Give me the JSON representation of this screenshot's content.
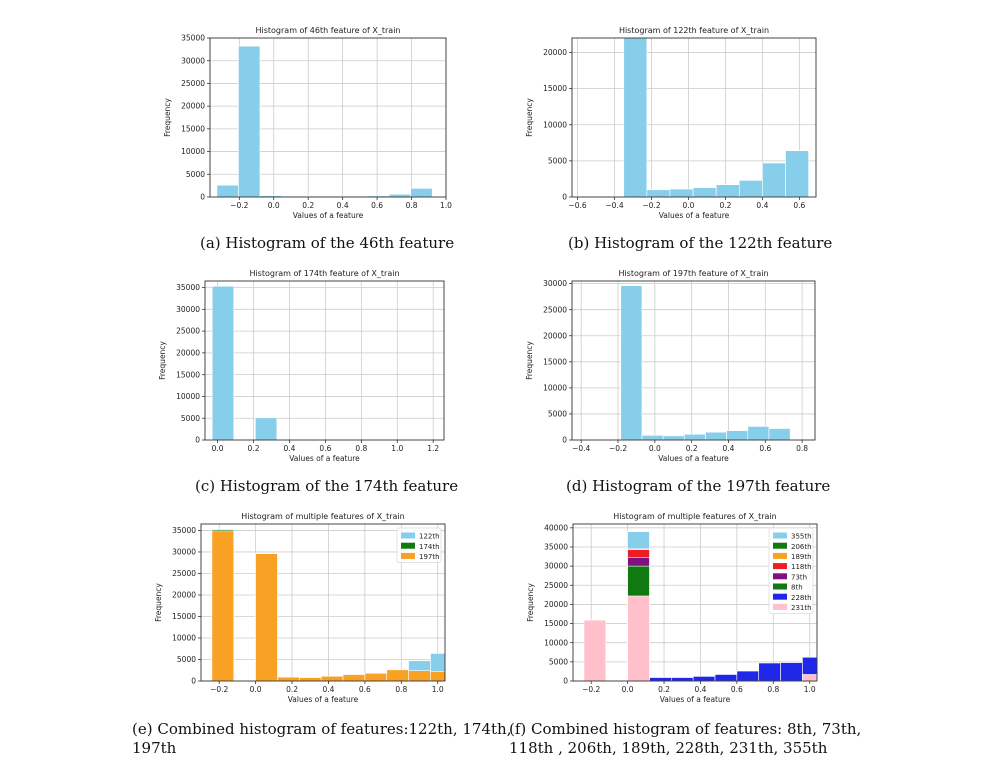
{
  "colors": {
    "skyblue": "#87ceeb",
    "green": "#107a10",
    "orange": "#f8a125",
    "red": "#ee1c25",
    "purple": "#7f1280",
    "blue": "#1f28e9",
    "pink": "#ffc0cb",
    "grid": "#cccccc",
    "axis": "#333333"
  },
  "captions": {
    "a": "(a) Histogram of the 46th feature",
    "b": "(b) Histogram of the 122th feature",
    "c": "(c) Histogram of the 174th feature",
    "d": "(d) Histogram of the 197th feature",
    "e_line1": "(e) Combined histogram of features:122th, 174th,",
    "e_line2": "197th",
    "f_line1": "(f) Combined histogram of features: 8th, 73th,",
    "f_line2": "118th , 206th, 189th, 228th, 231th, 355th"
  },
  "chart_data": [
    {
      "id": "a",
      "type": "bar",
      "title": "Histogram of 46th feature of X_train",
      "xlabel": "Values of a feature",
      "ylabel": "Frequency",
      "xlim": [
        -0.37,
        1.0
      ],
      "ylim": [
        0,
        35000
      ],
      "grid": true,
      "xticks": [
        -0.2,
        0.0,
        0.2,
        0.4,
        0.6,
        0.8,
        1.0
      ],
      "xticklabels": [
        "−0.2",
        "0.0",
        "0.2",
        "0.4",
        "0.6",
        "0.8",
        "1.0"
      ],
      "yticks": [
        0,
        5000,
        10000,
        15000,
        20000,
        25000,
        30000,
        35000
      ],
      "series": [
        {
          "color": "skyblue",
          "bins": [
            {
              "x0": -0.33,
              "x1": -0.205,
              "y": 2600
            },
            {
              "x0": -0.205,
              "x1": -0.08,
              "y": 33200
            },
            {
              "x0": -0.08,
              "x1": 0.045,
              "y": 300
            },
            {
              "x0": 0.045,
              "x1": 0.17,
              "y": 200
            },
            {
              "x0": 0.17,
              "x1": 0.295,
              "y": 200
            },
            {
              "x0": 0.295,
              "x1": 0.42,
              "y": 200
            },
            {
              "x0": 0.42,
              "x1": 0.545,
              "y": 200
            },
            {
              "x0": 0.545,
              "x1": 0.67,
              "y": 250
            },
            {
              "x0": 0.67,
              "x1": 0.795,
              "y": 600
            },
            {
              "x0": 0.795,
              "x1": 0.92,
              "y": 1900
            }
          ]
        }
      ]
    },
    {
      "id": "b",
      "type": "bar",
      "title": "Histogram of 122th feature of X_train",
      "xlabel": "Values of a feature",
      "ylabel": "Frequency",
      "xlim": [
        -0.63,
        0.69
      ],
      "ylim": [
        0,
        22000
      ],
      "grid": true,
      "xticks": [
        -0.6,
        -0.4,
        -0.2,
        0.0,
        0.2,
        0.4,
        0.6
      ],
      "xticklabels": [
        "−0.6",
        "−0.4",
        "−0.2",
        "0.0",
        "0.2",
        "0.4",
        "0.6"
      ],
      "yticks": [
        0,
        5000,
        10000,
        15000,
        20000
      ],
      "series": [
        {
          "color": "skyblue",
          "bins": [
            {
              "x0": -0.6,
              "x1": -0.475,
              "y": 100
            },
            {
              "x0": -0.475,
              "x1": -0.35,
              "y": 100
            },
            {
              "x0": -0.35,
              "x1": -0.225,
              "y": 22000
            },
            {
              "x0": -0.225,
              "x1": -0.1,
              "y": 1000
            },
            {
              "x0": -0.1,
              "x1": 0.025,
              "y": 1100
            },
            {
              "x0": 0.025,
              "x1": 0.15,
              "y": 1300
            },
            {
              "x0": 0.15,
              "x1": 0.275,
              "y": 1700
            },
            {
              "x0": 0.275,
              "x1": 0.4,
              "y": 2300
            },
            {
              "x0": 0.4,
              "x1": 0.525,
              "y": 4700
            },
            {
              "x0": 0.525,
              "x1": 0.65,
              "y": 6400
            }
          ]
        }
      ]
    },
    {
      "id": "c",
      "type": "bar",
      "title": "Histogram of 174th feature of X_train",
      "xlabel": "Values of a feature",
      "ylabel": "Frequency",
      "xlim": [
        -0.07,
        1.26
      ],
      "ylim": [
        0,
        36500
      ],
      "grid": true,
      "xticks": [
        0.0,
        0.2,
        0.4,
        0.6,
        0.8,
        1.0,
        1.2
      ],
      "xticklabels": [
        "0.0",
        "0.2",
        "0.4",
        "0.6",
        "0.8",
        "1.0",
        "1.2"
      ],
      "yticks": [
        0,
        5000,
        10000,
        15000,
        20000,
        25000,
        30000,
        35000
      ],
      "series": [
        {
          "color": "skyblue",
          "bins": [
            {
              "x0": -0.03,
              "x1": 0.09,
              "y": 35300
            },
            {
              "x0": 0.09,
              "x1": 0.21,
              "y": 0
            },
            {
              "x0": 0.21,
              "x1": 0.33,
              "y": 5100
            },
            {
              "x0": 0.33,
              "x1": 0.45,
              "y": 0
            },
            {
              "x0": 0.45,
              "x1": 0.57,
              "y": 0
            },
            {
              "x0": 0.57,
              "x1": 0.69,
              "y": 0
            },
            {
              "x0": 0.69,
              "x1": 0.81,
              "y": 0
            },
            {
              "x0": 0.81,
              "x1": 0.93,
              "y": 0
            },
            {
              "x0": 0.93,
              "x1": 1.05,
              "y": 0
            },
            {
              "x0": 1.05,
              "x1": 1.17,
              "y": 0
            }
          ]
        }
      ]
    },
    {
      "id": "d",
      "type": "bar",
      "title": "Histogram of 197th feature of X_train",
      "xlabel": "Values of a feature",
      "ylabel": "Frequency",
      "xlim": [
        -0.45,
        0.87
      ],
      "ylim": [
        0,
        30500
      ],
      "grid": true,
      "xticks": [
        -0.4,
        -0.2,
        0.0,
        0.2,
        0.4,
        0.6,
        0.8
      ],
      "xticklabels": [
        "−0.4",
        "−0.2",
        "0.0",
        "0.2",
        "0.4",
        "0.6",
        "0.8"
      ],
      "yticks": [
        0,
        5000,
        10000,
        15000,
        20000,
        25000,
        30000
      ],
      "series": [
        {
          "color": "skyblue",
          "bins": [
            {
              "x0": -0.3,
              "x1": -0.185,
              "y": 0
            },
            {
              "x0": -0.185,
              "x1": -0.07,
              "y": 29600
            },
            {
              "x0": -0.07,
              "x1": 0.045,
              "y": 900
            },
            {
              "x0": 0.045,
              "x1": 0.16,
              "y": 800
            },
            {
              "x0": 0.16,
              "x1": 0.275,
              "y": 1100
            },
            {
              "x0": 0.275,
              "x1": 0.39,
              "y": 1500
            },
            {
              "x0": 0.39,
              "x1": 0.505,
              "y": 1800
            },
            {
              "x0": 0.505,
              "x1": 0.62,
              "y": 2600
            },
            {
              "x0": 0.62,
              "x1": 0.735,
              "y": 2200
            }
          ]
        }
      ]
    },
    {
      "id": "e",
      "type": "bar",
      "title": "Histogram of multiple features of X_train",
      "xlabel": "Values of a feature",
      "ylabel": "Frequency",
      "xlim": [
        -0.3,
        1.04
      ],
      "ylim": [
        0,
        36500
      ],
      "grid": true,
      "xticks": [
        -0.2,
        0.0,
        0.2,
        0.4,
        0.6,
        0.8,
        1.0
      ],
      "xticklabels": [
        "−0.2",
        "0.0",
        "0.2",
        "0.4",
        "0.6",
        "0.8",
        "1.0"
      ],
      "yticks": [
        0,
        5000,
        10000,
        15000,
        20000,
        25000,
        30000,
        35000
      ],
      "legend": {
        "position": "top-right",
        "entries": [
          {
            "label": "122th",
            "color": "skyblue"
          },
          {
            "label": "174th",
            "color": "green"
          },
          {
            "label": "197th",
            "color": "orange"
          }
        ]
      },
      "series": [
        {
          "name": "122th",
          "color": "skyblue",
          "bins": [
            {
              "x0": -0.24,
              "x1": -0.12,
              "y": 100
            },
            {
              "x0": 0.84,
              "x1": 0.96,
              "y": 4700
            },
            {
              "x0": 0.96,
              "x1": 1.08,
              "y": 6400
            }
          ]
        },
        {
          "name": "174th",
          "color": "green",
          "bins": [
            {
              "x0": -0.24,
              "x1": -0.12,
              "y": 35200
            }
          ]
        },
        {
          "name": "197th",
          "color": "orange",
          "bins": [
            {
              "x0": -0.24,
              "x1": -0.12,
              "y": 34900
            },
            {
              "x0": 0.0,
              "x1": 0.12,
              "y": 29600
            },
            {
              "x0": 0.12,
              "x1": 0.24,
              "y": 900
            },
            {
              "x0": 0.24,
              "x1": 0.36,
              "y": 800
            },
            {
              "x0": 0.36,
              "x1": 0.48,
              "y": 1100
            },
            {
              "x0": 0.48,
              "x1": 0.6,
              "y": 1500
            },
            {
              "x0": 0.6,
              "x1": 0.72,
              "y": 1800
            },
            {
              "x0": 0.72,
              "x1": 0.84,
              "y": 2600
            },
            {
              "x0": 0.84,
              "x1": 0.96,
              "y": 2400
            },
            {
              "x0": 0.96,
              "x1": 1.08,
              "y": 2200
            }
          ]
        }
      ]
    },
    {
      "id": "f",
      "type": "bar",
      "title": "Histogram of multiple features of X_train",
      "xlabel": "Values of a feature",
      "ylabel": "Frequency",
      "xlim": [
        -0.3,
        1.04
      ],
      "ylim": [
        0,
        41000
      ],
      "grid": true,
      "xticks": [
        -0.2,
        0.0,
        0.2,
        0.4,
        0.6,
        0.8,
        1.0
      ],
      "xticklabels": [
        "−0.2",
        "0.0",
        "0.2",
        "0.4",
        "0.6",
        "0.8",
        "1.0"
      ],
      "yticks": [
        0,
        5000,
        10000,
        15000,
        20000,
        25000,
        30000,
        35000,
        40000
      ],
      "legend": {
        "position": "top-right",
        "entries": [
          {
            "label": "355th",
            "color": "skyblue"
          },
          {
            "label": "206th",
            "color": "green"
          },
          {
            "label": "189th",
            "color": "orange"
          },
          {
            "label": "118th",
            "color": "red"
          },
          {
            "label": "73th",
            "color": "purple"
          },
          {
            "label": "8th",
            "color": "green"
          },
          {
            "label": "228th",
            "color": "blue"
          },
          {
            "label": "231th",
            "color": "pink"
          }
        ]
      },
      "series": [
        {
          "name": "355th",
          "color": "skyblue",
          "bins": [
            {
              "x0": 0.0,
              "x1": 0.12,
              "y": 39000
            }
          ]
        },
        {
          "name": "189th",
          "color": "orange",
          "bins": [
            {
              "x0": 0.0,
              "x1": 0.12,
              "y": 34500
            }
          ]
        },
        {
          "name": "118th",
          "color": "red",
          "bins": [
            {
              "x0": 0.0,
              "x1": 0.12,
              "y": 34300
            }
          ]
        },
        {
          "name": "73th",
          "color": "purple",
          "bins": [
            {
              "x0": 0.0,
              "x1": 0.12,
              "y": 32300
            }
          ]
        },
        {
          "name": "206th",
          "color": "green",
          "bins": [
            {
              "x0": 0.0,
              "x1": 0.12,
              "y": 30000
            }
          ]
        },
        {
          "name": "228th",
          "color": "blue",
          "bins": [
            {
              "x0": 0.12,
              "x1": 0.24,
              "y": 900
            },
            {
              "x0": 0.24,
              "x1": 0.36,
              "y": 900
            },
            {
              "x0": 0.36,
              "x1": 0.48,
              "y": 1200
            },
            {
              "x0": 0.48,
              "x1": 0.6,
              "y": 1700
            },
            {
              "x0": 0.6,
              "x1": 0.72,
              "y": 2600
            },
            {
              "x0": 0.72,
              "x1": 0.84,
              "y": 4700
            },
            {
              "x0": 0.84,
              "x1": 0.96,
              "y": 4800
            },
            {
              "x0": 0.96,
              "x1": 1.08,
              "y": 6200
            }
          ]
        },
        {
          "name": "231th",
          "color": "pink",
          "bins": [
            {
              "x0": -0.24,
              "x1": -0.12,
              "y": 15900
            },
            {
              "x0": 0.0,
              "x1": 0.12,
              "y": 22200
            },
            {
              "x0": 0.96,
              "x1": 1.08,
              "y": 1700
            }
          ]
        }
      ]
    }
  ]
}
